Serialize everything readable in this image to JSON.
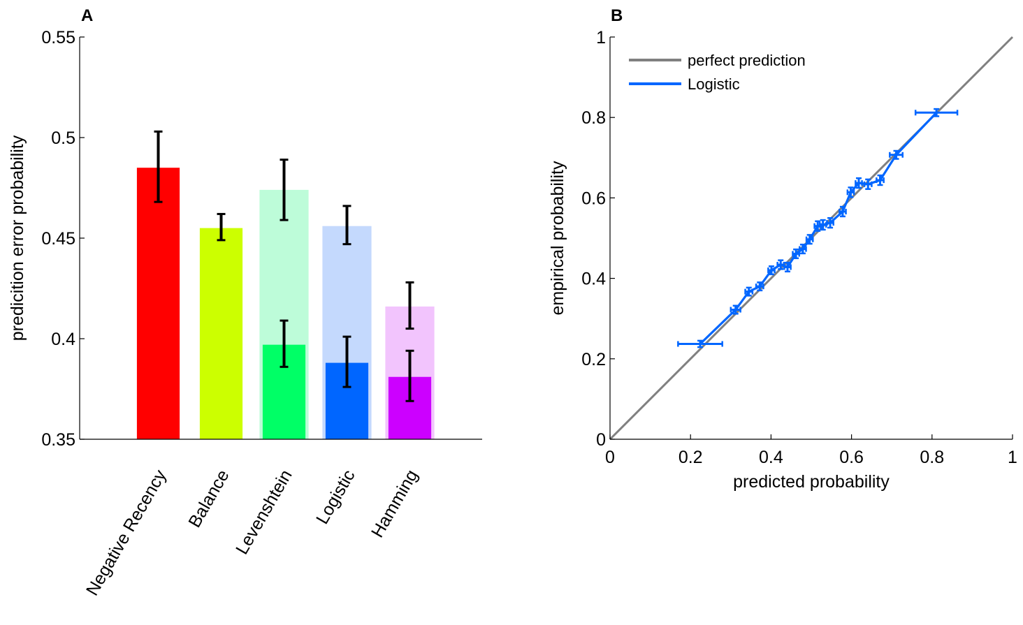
{
  "chart_data": [
    {
      "panel": "A",
      "type": "bar",
      "title": "",
      "xlabel": "",
      "ylabel": "predicition error probability",
      "ylim": [
        0.35,
        0.55
      ],
      "yticks": [
        "0.35",
        "0.4",
        "0.45",
        "0.5",
        "0.55"
      ],
      "categories": [
        "Negative Recency",
        "Balance",
        "Levenshtein",
        "Logistic",
        "Hamming"
      ],
      "colors": [
        "#ff0000",
        "#ccff00",
        "#00ff66",
        "#0066ff",
        "#cc00ff"
      ],
      "light_colors": [
        "",
        "",
        "#bdfcd9",
        "#c4d9fd",
        "#f2c4fd"
      ],
      "series": [
        {
          "values": [
            0.485,
            0.455,
            0.474,
            0.456,
            0.416
          ],
          "err_low": [
            0.468,
            0.449,
            0.459,
            0.447,
            0.405
          ],
          "err_high": [
            0.503,
            0.462,
            0.489,
            0.466,
            0.428
          ]
        },
        {
          "values": [
            null,
            null,
            0.397,
            0.388,
            0.381
          ],
          "err_low": [
            null,
            null,
            0.386,
            0.376,
            0.369
          ],
          "err_high": [
            null,
            null,
            0.409,
            0.401,
            0.394
          ]
        }
      ],
      "grid": false
    },
    {
      "panel": "B",
      "type": "line",
      "title": "",
      "xlabel": "predicted probability",
      "ylabel": "empirical probability",
      "xlim": [
        0,
        1
      ],
      "ylim": [
        0,
        1
      ],
      "xticks": [
        "0",
        "0.2",
        "0.4",
        "0.6",
        "0.8",
        "1"
      ],
      "yticks": [
        "0",
        "0.2",
        "0.4",
        "0.6",
        "0.8",
        "1"
      ],
      "legend": {
        "placement": "top-left",
        "entries": [
          "perfect prediction",
          "Logistic"
        ]
      },
      "series": [
        {
          "name": "perfect prediction",
          "color": "#808080",
          "x": [
            0,
            1
          ],
          "y": [
            0,
            1
          ]
        },
        {
          "name": "Logistic",
          "color": "#0066ff",
          "x": [
            0.224,
            0.312,
            0.345,
            0.372,
            0.401,
            0.424,
            0.441,
            0.462,
            0.479,
            0.496,
            0.516,
            0.529,
            0.547,
            0.578,
            0.598,
            0.618,
            0.641,
            0.671,
            0.711,
            0.811
          ],
          "y": [
            0.237,
            0.322,
            0.367,
            0.38,
            0.42,
            0.434,
            0.428,
            0.461,
            0.473,
            0.497,
            0.53,
            0.533,
            0.538,
            0.566,
            0.614,
            0.637,
            0.634,
            0.644,
            0.707,
            0.812
          ],
          "xerr": [
            0.055,
            0.012,
            0.009,
            0.009,
            0.008,
            0.008,
            0.008,
            0.008,
            0.008,
            0.008,
            0.008,
            0.008,
            0.008,
            0.008,
            0.008,
            0.008,
            0.009,
            0.009,
            0.016,
            0.052
          ],
          "yerr": [
            0.008,
            0.01,
            0.01,
            0.01,
            0.01,
            0.011,
            0.011,
            0.011,
            0.011,
            0.011,
            0.012,
            0.012,
            0.012,
            0.012,
            0.012,
            0.012,
            0.012,
            0.012,
            0.01,
            0.009
          ]
        }
      ],
      "grid": false
    }
  ]
}
